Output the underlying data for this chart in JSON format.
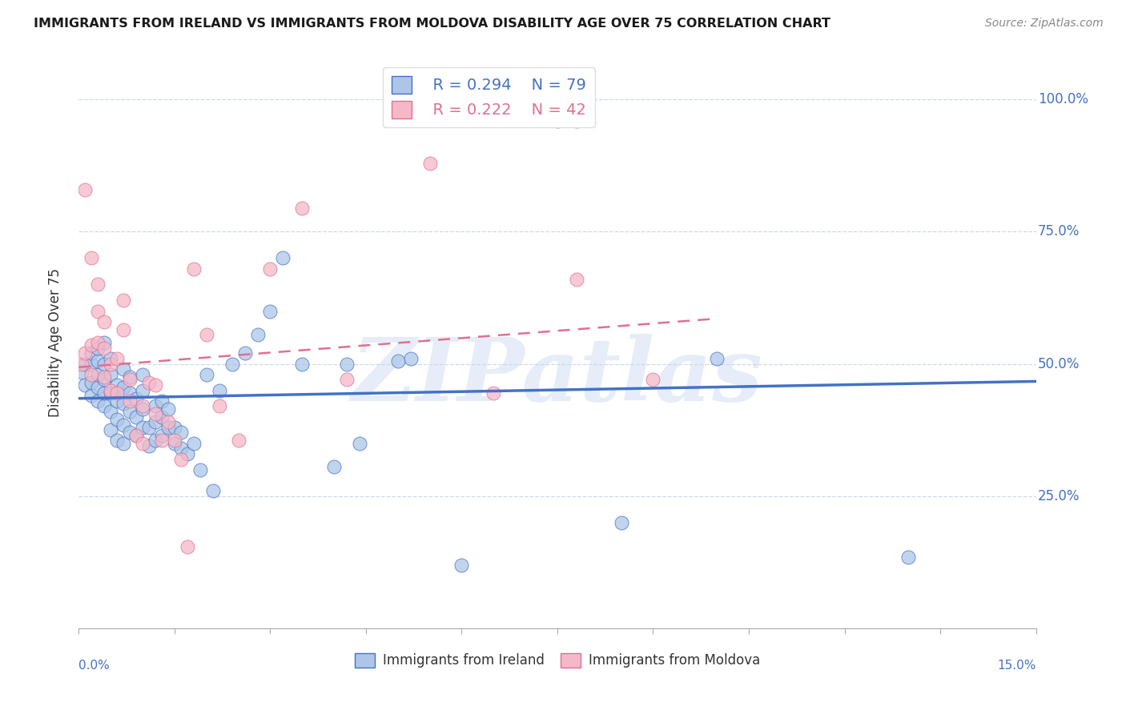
{
  "title": "IMMIGRANTS FROM IRELAND VS IMMIGRANTS FROM MOLDOVA DISABILITY AGE OVER 75 CORRELATION CHART",
  "source": "Source: ZipAtlas.com",
  "ylabel_label": "Disability Age Over 75",
  "legend_label1": "Immigrants from Ireland",
  "legend_label2": "Immigrants from Moldova",
  "R1": 0.294,
  "N1": 79,
  "R2": 0.222,
  "N2": 42,
  "color1": "#adc6e8",
  "color2": "#f5b8c8",
  "line_color1": "#4472c4",
  "line_color2": "#e07090",
  "tick_color": "#4472c4",
  "x_min": 0.0,
  "x_max": 0.15,
  "y_min": 0.0,
  "y_max": 1.08,
  "x_ticks": [
    0.0,
    0.015,
    0.03,
    0.045,
    0.06,
    0.075,
    0.09,
    0.105,
    0.12,
    0.135,
    0.15
  ],
  "y_ticks": [
    0.25,
    0.5,
    0.75,
    1.0
  ],
  "y_tick_labels": [
    "25.0%",
    "50.0%",
    "75.0%",
    "100.0%"
  ],
  "ireland_x": [
    0.0005,
    0.001,
    0.001,
    0.002,
    0.002,
    0.002,
    0.002,
    0.003,
    0.003,
    0.003,
    0.003,
    0.003,
    0.004,
    0.004,
    0.004,
    0.004,
    0.004,
    0.005,
    0.005,
    0.005,
    0.005,
    0.005,
    0.006,
    0.006,
    0.006,
    0.006,
    0.007,
    0.007,
    0.007,
    0.007,
    0.007,
    0.008,
    0.008,
    0.008,
    0.008,
    0.009,
    0.009,
    0.009,
    0.01,
    0.01,
    0.01,
    0.01,
    0.011,
    0.011,
    0.012,
    0.012,
    0.012,
    0.013,
    0.013,
    0.013,
    0.014,
    0.014,
    0.015,
    0.015,
    0.016,
    0.016,
    0.017,
    0.018,
    0.019,
    0.02,
    0.021,
    0.022,
    0.024,
    0.026,
    0.028,
    0.03,
    0.032,
    0.035,
    0.04,
    0.042,
    0.044,
    0.05,
    0.052,
    0.06,
    0.075,
    0.078,
    0.085,
    0.1,
    0.13
  ],
  "ireland_y": [
    0.485,
    0.46,
    0.5,
    0.44,
    0.465,
    0.5,
    0.52,
    0.43,
    0.455,
    0.48,
    0.505,
    0.53,
    0.42,
    0.445,
    0.47,
    0.5,
    0.54,
    0.375,
    0.41,
    0.445,
    0.48,
    0.51,
    0.355,
    0.395,
    0.43,
    0.46,
    0.35,
    0.385,
    0.425,
    0.455,
    0.49,
    0.37,
    0.41,
    0.445,
    0.475,
    0.365,
    0.4,
    0.435,
    0.38,
    0.415,
    0.45,
    0.48,
    0.345,
    0.38,
    0.355,
    0.39,
    0.42,
    0.365,
    0.4,
    0.43,
    0.38,
    0.415,
    0.35,
    0.38,
    0.34,
    0.37,
    0.33,
    0.35,
    0.3,
    0.48,
    0.26,
    0.45,
    0.5,
    0.52,
    0.555,
    0.6,
    0.7,
    0.5,
    0.305,
    0.5,
    0.35,
    0.505,
    0.51,
    0.12,
    0.96,
    0.96,
    0.2,
    0.51,
    0.135
  ],
  "moldova_x": [
    0.0005,
    0.001,
    0.001,
    0.002,
    0.002,
    0.002,
    0.003,
    0.003,
    0.003,
    0.004,
    0.004,
    0.004,
    0.005,
    0.005,
    0.006,
    0.006,
    0.007,
    0.007,
    0.008,
    0.008,
    0.009,
    0.01,
    0.01,
    0.011,
    0.012,
    0.012,
    0.013,
    0.014,
    0.015,
    0.016,
    0.017,
    0.018,
    0.02,
    0.022,
    0.025,
    0.03,
    0.035,
    0.042,
    0.055,
    0.065,
    0.078,
    0.09
  ],
  "moldova_y": [
    0.5,
    0.52,
    0.83,
    0.48,
    0.535,
    0.7,
    0.54,
    0.6,
    0.65,
    0.475,
    0.53,
    0.58,
    0.45,
    0.5,
    0.445,
    0.51,
    0.565,
    0.62,
    0.43,
    0.47,
    0.365,
    0.35,
    0.42,
    0.465,
    0.405,
    0.46,
    0.355,
    0.39,
    0.355,
    0.32,
    0.155,
    0.68,
    0.555,
    0.42,
    0.355,
    0.68,
    0.795,
    0.47,
    0.88,
    0.445,
    0.66,
    0.47
  ],
  "watermark": "ZIPatlas",
  "watermark_color": "#c8d8f0",
  "line1_x_start": 0.0,
  "line1_x_end": 0.15,
  "line2_x_start": 0.0,
  "line2_x_end": 0.1
}
